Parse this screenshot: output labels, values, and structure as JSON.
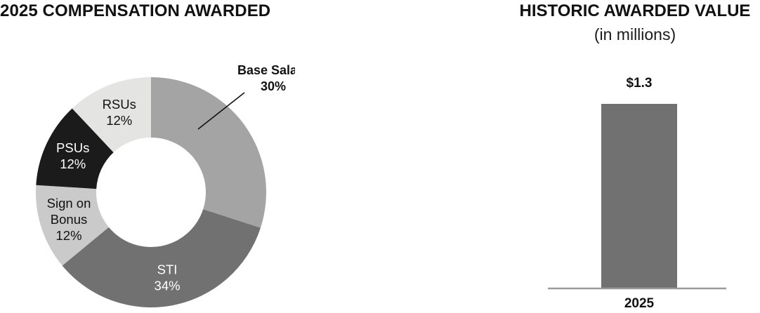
{
  "chart_data": [
    {
      "type": "pie",
      "title": "2025 COMPENSATION AWARDED",
      "slices": [
        {
          "label": "Base Salary",
          "value": 30,
          "display": "30%",
          "color": "#a3a4a3",
          "text_color": "#111111",
          "bold": true,
          "outside": true
        },
        {
          "label": "STI",
          "value": 34,
          "display": "34%",
          "color": "#717171",
          "text_color": "#ffffff",
          "bold": false,
          "outside": false
        },
        {
          "label": "Sign on Bonus",
          "lines": [
            "Sign on",
            "Bonus"
          ],
          "value": 12,
          "display": "12%",
          "color": "#cacaca",
          "text_color": "#111111",
          "bold": false,
          "outside": false
        },
        {
          "label": "PSUs",
          "value": 12,
          "display": "12%",
          "color": "#1b1b1b",
          "text_color": "#ffffff",
          "bold": false,
          "outside": false
        },
        {
          "label": "RSUs",
          "value": 12,
          "display": "12%",
          "color": "#e4e4e3",
          "text_color": "#111111",
          "bold": false,
          "outside": false
        }
      ]
    },
    {
      "type": "bar",
      "title": "HISTORIC AWARDED VALUE",
      "subtitle": "(in millions)",
      "categories": [
        "2025"
      ],
      "values": [
        1.3
      ],
      "value_labels": [
        "$1.3"
      ],
      "ylim": [
        0,
        1.3
      ],
      "bar_color": "#717171",
      "baseline_color": "#9a9a9a"
    }
  ]
}
